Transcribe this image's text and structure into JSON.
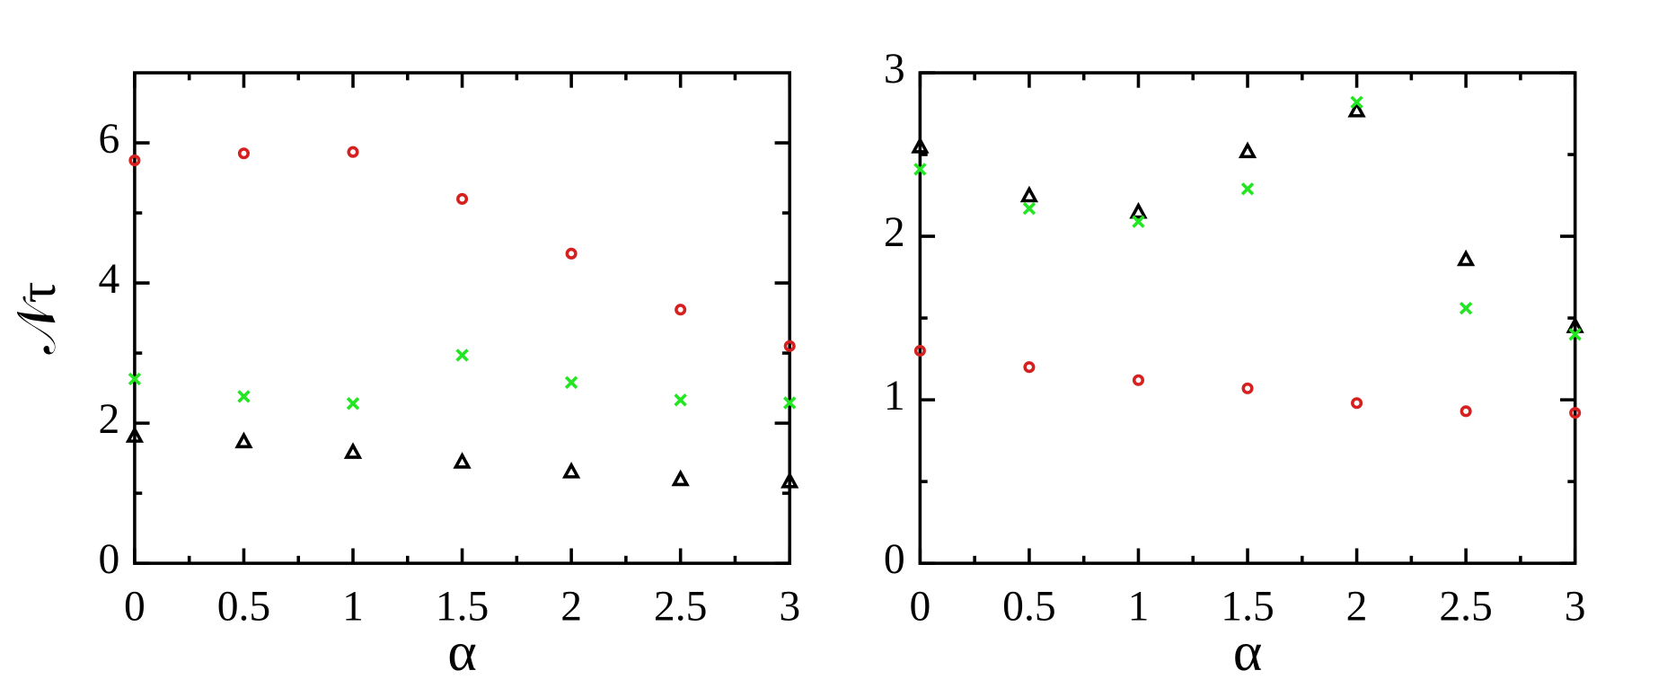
{
  "chart_data": [
    {
      "type": "scatter",
      "x_label": "α",
      "y_label": "𝒩τ",
      "x": [
        0,
        0.5,
        1,
        1.5,
        2,
        2.5,
        3
      ],
      "xlim": [
        0,
        3
      ],
      "xticks": [
        0,
        0.5,
        1,
        1.5,
        2,
        2.5,
        3
      ],
      "xminorticks": [
        0.25,
        0.75,
        1.25,
        1.75,
        2.25,
        2.75
      ],
      "ylim": [
        0,
        7
      ],
      "yticks": [
        0,
        2,
        4,
        6
      ],
      "yminorticks": [
        1,
        3,
        5
      ],
      "series": [
        {
          "marker": "circle",
          "color": "#d62020",
          "values": [
            5.75,
            5.85,
            5.87,
            5.2,
            4.42,
            3.62,
            3.1
          ]
        },
        {
          "marker": "cross",
          "color": "#22e622",
          "values": [
            2.63,
            2.38,
            2.28,
            2.97,
            2.58,
            2.33,
            2.29
          ]
        },
        {
          "marker": "triangle",
          "color": "#000000",
          "values": [
            1.82,
            1.74,
            1.59,
            1.45,
            1.31,
            1.2,
            1.17
          ]
        }
      ]
    },
    {
      "type": "scatter",
      "x_label": "α",
      "x": [
        0,
        0.5,
        1,
        1.5,
        2,
        2.5,
        3
      ],
      "xlim": [
        0,
        3
      ],
      "xticks": [
        0,
        0.5,
        1,
        1.5,
        2,
        2.5,
        3
      ],
      "xminorticks": [
        0.25,
        0.75,
        1.25,
        1.75,
        2.25,
        2.75
      ],
      "ylim": [
        0,
        3
      ],
      "yticks": [
        0,
        1,
        2,
        3
      ],
      "yminorticks": [
        0.5,
        1.5,
        2.5
      ],
      "series": [
        {
          "marker": "triangle",
          "color": "#000000",
          "values": [
            2.55,
            2.25,
            2.15,
            2.52,
            2.77,
            1.86,
            1.45
          ]
        },
        {
          "marker": "cross",
          "color": "#22e622",
          "values": [
            2.41,
            2.17,
            2.09,
            2.29,
            2.82,
            1.56,
            1.4
          ]
        },
        {
          "marker": "circle",
          "color": "#d62020",
          "values": [
            1.3,
            1.2,
            1.12,
            1.07,
            0.98,
            0.93,
            0.92
          ]
        }
      ]
    }
  ]
}
